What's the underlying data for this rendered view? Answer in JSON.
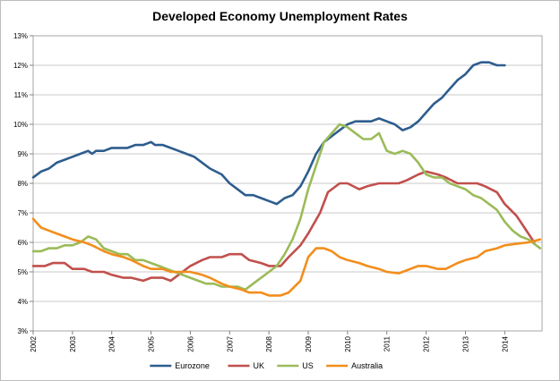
{
  "chart_data": {
    "type": "line",
    "title": "Developed Economy Unemployment Rates",
    "xlabel": "",
    "ylabel": "",
    "ylim": [
      3,
      13
    ],
    "xlim": [
      2002,
      2014.95
    ],
    "y_ticks": [
      "3%",
      "4%",
      "5%",
      "6%",
      "7%",
      "8%",
      "9%",
      "10%",
      "11%",
      "12%",
      "13%"
    ],
    "y_tick_values": [
      3,
      4,
      5,
      6,
      7,
      8,
      9,
      10,
      11,
      12,
      13
    ],
    "x_ticks": [
      "2002",
      "2003",
      "2004",
      "2005",
      "2006",
      "2007",
      "2008",
      "2009",
      "2010",
      "2011",
      "2012",
      "2013",
      "2014"
    ],
    "x_tick_values": [
      2002,
      2003,
      2004,
      2005,
      2006,
      2007,
      2008,
      2009,
      2010,
      2011,
      2012,
      2013,
      2014
    ],
    "grid": "horizontal",
    "legend": "bottom",
    "series": [
      {
        "name": "Eurozone",
        "color": "#2e5d8e",
        "x": [
          2002.0,
          2002.2,
          2002.4,
          2002.6,
          2002.8,
          2003.0,
          2003.2,
          2003.4,
          2003.5,
          2003.6,
          2003.8,
          2004.0,
          2004.2,
          2004.4,
          2004.6,
          2004.8,
          2005.0,
          2005.1,
          2005.3,
          2005.5,
          2005.7,
          2005.9,
          2006.1,
          2006.3,
          2006.5,
          2006.8,
          2007.0,
          2007.2,
          2007.4,
          2007.6,
          2007.8,
          2008.0,
          2008.2,
          2008.4,
          2008.6,
          2008.8,
          2009.0,
          2009.2,
          2009.4,
          2009.6,
          2009.8,
          2010.0,
          2010.2,
          2010.4,
          2010.6,
          2010.8,
          2011.0,
          2011.2,
          2011.4,
          2011.6,
          2011.8,
          2012.0,
          2012.2,
          2012.4,
          2012.6,
          2012.8,
          2013.0,
          2013.2,
          2013.4,
          2013.6,
          2013.8,
          2014.0
        ],
        "values": [
          8.2,
          8.4,
          8.5,
          8.7,
          8.8,
          8.9,
          9.0,
          9.1,
          9.0,
          9.1,
          9.1,
          9.2,
          9.2,
          9.2,
          9.3,
          9.3,
          9.4,
          9.3,
          9.3,
          9.2,
          9.1,
          9.0,
          8.9,
          8.7,
          8.5,
          8.3,
          8.0,
          7.8,
          7.6,
          7.6,
          7.5,
          7.4,
          7.3,
          7.5,
          7.6,
          7.9,
          8.4,
          9.0,
          9.4,
          9.6,
          9.8,
          10.0,
          10.1,
          10.1,
          10.1,
          10.2,
          10.1,
          10.0,
          9.8,
          9.9,
          10.1,
          10.4,
          10.7,
          10.9,
          11.2,
          11.5,
          11.7,
          12.0,
          12.1,
          12.1,
          12.0,
          12.0
        ]
      },
      {
        "name": "UK",
        "color": "#c0504d",
        "x": [
          2002.0,
          2002.3,
          2002.5,
          2002.8,
          2003.0,
          2003.3,
          2003.5,
          2003.8,
          2004.0,
          2004.3,
          2004.5,
          2004.8,
          2005.0,
          2005.3,
          2005.5,
          2005.8,
          2006.0,
          2006.3,
          2006.5,
          2006.8,
          2007.0,
          2007.3,
          2007.5,
          2007.8,
          2008.0,
          2008.3,
          2008.5,
          2008.8,
          2009.0,
          2009.3,
          2009.5,
          2009.8,
          2010.0,
          2010.3,
          2010.5,
          2010.8,
          2011.0,
          2011.3,
          2011.5,
          2011.8,
          2012.0,
          2012.3,
          2012.5,
          2012.8,
          2013.0,
          2013.3,
          2013.5,
          2013.8,
          2014.0,
          2014.3,
          2014.5,
          2014.75
        ],
        "values": [
          5.2,
          5.2,
          5.3,
          5.3,
          5.1,
          5.1,
          5.0,
          5.0,
          4.9,
          4.8,
          4.8,
          4.7,
          4.8,
          4.8,
          4.7,
          5.0,
          5.2,
          5.4,
          5.5,
          5.5,
          5.6,
          5.6,
          5.4,
          5.3,
          5.2,
          5.2,
          5.5,
          5.9,
          6.3,
          7.0,
          7.7,
          8.0,
          8.0,
          7.8,
          7.9,
          8.0,
          8.0,
          8.0,
          8.1,
          8.3,
          8.4,
          8.3,
          8.2,
          8.0,
          8.0,
          8.0,
          7.9,
          7.7,
          7.3,
          6.9,
          6.5,
          6.0
        ]
      },
      {
        "name": "US",
        "color": "#9bbb59",
        "x": [
          2002.0,
          2002.2,
          2002.4,
          2002.6,
          2002.8,
          2003.0,
          2003.2,
          2003.4,
          2003.6,
          2003.8,
          2004.0,
          2004.2,
          2004.4,
          2004.6,
          2004.8,
          2005.0,
          2005.2,
          2005.4,
          2005.6,
          2005.8,
          2006.0,
          2006.2,
          2006.4,
          2006.6,
          2006.8,
          2007.0,
          2007.2,
          2007.4,
          2007.6,
          2007.8,
          2008.0,
          2008.2,
          2008.4,
          2008.6,
          2008.8,
          2009.0,
          2009.2,
          2009.4,
          2009.6,
          2009.8,
          2010.0,
          2010.2,
          2010.4,
          2010.6,
          2010.8,
          2011.0,
          2011.2,
          2011.4,
          2011.6,
          2011.8,
          2012.0,
          2012.2,
          2012.4,
          2012.6,
          2012.8,
          2013.0,
          2013.2,
          2013.4,
          2013.6,
          2013.8,
          2014.0,
          2014.2,
          2014.4,
          2014.6,
          2014.9
        ],
        "values": [
          5.7,
          5.7,
          5.8,
          5.8,
          5.9,
          5.9,
          6.0,
          6.2,
          6.1,
          5.8,
          5.7,
          5.6,
          5.6,
          5.4,
          5.4,
          5.3,
          5.2,
          5.1,
          5.0,
          4.9,
          4.8,
          4.7,
          4.6,
          4.6,
          4.5,
          4.5,
          4.5,
          4.4,
          4.6,
          4.8,
          5.0,
          5.2,
          5.6,
          6.1,
          6.8,
          7.8,
          8.6,
          9.4,
          9.7,
          10.0,
          9.9,
          9.7,
          9.5,
          9.5,
          9.7,
          9.1,
          9.0,
          9.1,
          9.0,
          8.7,
          8.3,
          8.2,
          8.2,
          8.0,
          7.9,
          7.8,
          7.6,
          7.5,
          7.3,
          7.1,
          6.7,
          6.4,
          6.2,
          6.1,
          5.8
        ]
      },
      {
        "name": "Australia",
        "color": "#f28e1c",
        "x": [
          2002.0,
          2002.2,
          2002.4,
          2002.6,
          2002.8,
          2003.0,
          2003.3,
          2003.5,
          2003.8,
          2004.0,
          2004.3,
          2004.5,
          2004.8,
          2005.0,
          2005.3,
          2005.5,
          2005.8,
          2006.0,
          2006.3,
          2006.5,
          2006.8,
          2007.0,
          2007.3,
          2007.5,
          2007.8,
          2008.0,
          2008.3,
          2008.5,
          2008.8,
          2009.0,
          2009.2,
          2009.4,
          2009.6,
          2009.8,
          2010.0,
          2010.3,
          2010.5,
          2010.8,
          2011.0,
          2011.3,
          2011.5,
          2011.8,
          2012.0,
          2012.3,
          2012.5,
          2012.8,
          2013.0,
          2013.3,
          2013.5,
          2013.8,
          2014.0,
          2014.3,
          2014.6,
          2014.9
        ],
        "values": [
          6.8,
          6.5,
          6.4,
          6.3,
          6.2,
          6.1,
          6.0,
          5.9,
          5.7,
          5.6,
          5.5,
          5.4,
          5.2,
          5.1,
          5.1,
          5.0,
          5.0,
          5.0,
          4.9,
          4.8,
          4.6,
          4.5,
          4.4,
          4.3,
          4.3,
          4.2,
          4.2,
          4.3,
          4.7,
          5.5,
          5.8,
          5.8,
          5.7,
          5.5,
          5.4,
          5.3,
          5.2,
          5.1,
          5.0,
          4.95,
          5.05,
          5.2,
          5.2,
          5.1,
          5.1,
          5.3,
          5.4,
          5.5,
          5.7,
          5.8,
          5.9,
          5.95,
          6.0,
          6.1
        ]
      }
    ]
  }
}
